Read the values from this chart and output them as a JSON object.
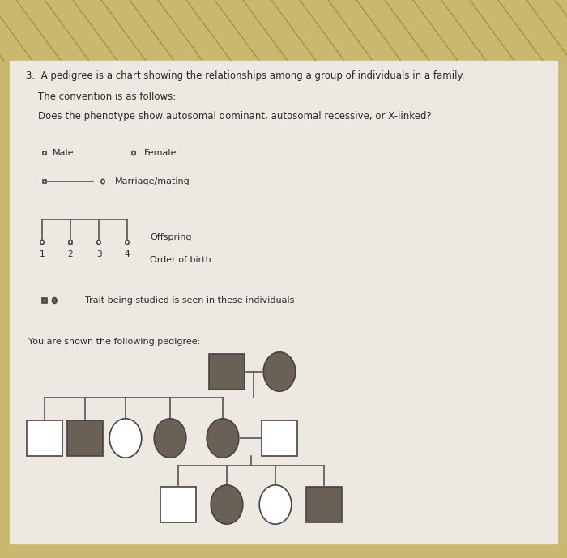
{
  "fig_width": 7.0,
  "fig_height": 6.89,
  "dpi": 100,
  "bg_color": "#c8b870",
  "paper_color": "#ede9e2",
  "text_color": "#2a2a2a",
  "dark_fill": "#6a6055",
  "light_fill": "#ffffff",
  "edge_color": "#444444",
  "line_color": "#555555",
  "strip_line_color": "#a89030",
  "question_line1": "3.  A pedigree is a chart showing the relationships among a group of individuals in a family.",
  "question_line2": "    The convention is as follows:",
  "question_line3": "    Does the phenotype show autosomal dominant, autosomal recessive, or X-linked?",
  "legend_male_label": "Male",
  "legend_female_label": "Female",
  "legend_marriage_label": "Marriage/mating",
  "legend_offspring_label": "Offspring",
  "legend_order_label": "Order of birth",
  "legend_trait_label": "Trait being studied is seen in these individuals",
  "you_shown_text": "You are shown the following pedigree:",
  "offspring_numbers": [
    "1",
    "2",
    "3",
    "4"
  ],
  "shape_sz": 0.032,
  "legend_sz": 0.024
}
